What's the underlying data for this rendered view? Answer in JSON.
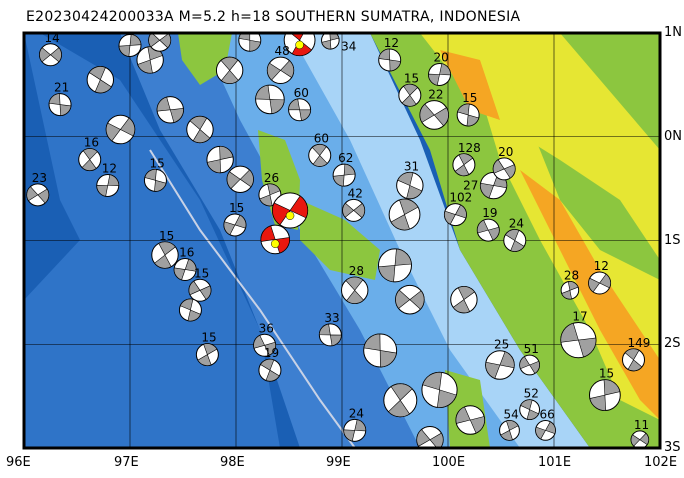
{
  "title": "E20230424200033A M=5.2 h=18 SOUTHERN SUMATRA, INDONESIA",
  "axes": {
    "lon_labels": [
      "96E",
      "97E",
      "98E",
      "99E",
      "100E",
      "101E",
      "102E"
    ],
    "lat_labels": [
      "1N",
      "0N",
      "1S",
      "2S",
      "3S"
    ],
    "lon_range": [
      96,
      102
    ],
    "lat_range": [
      -3,
      1
    ]
  },
  "colors": {
    "deep_ocean": "#1a5fb4",
    "mid_ocean": "#3d7fd0",
    "shelf": "#6aaeea",
    "shallow": "#a8d4f7",
    "lowland": "#8cc63f",
    "upland": "#e6e633",
    "highland": "#f5a623",
    "mechanism_fill": "#a0a0a0",
    "main_event_fill": "#e8170f",
    "epicenter": "#ffff00"
  },
  "mechanisms": [
    {
      "lon": 96.25,
      "lat": 0.79,
      "depth": "14",
      "size": 1,
      "main": false
    },
    {
      "lon": 96.34,
      "lat": 0.31,
      "depth": "21",
      "size": 1,
      "main": false
    },
    {
      "lon": 96.62,
      "lat": -0.22,
      "depth": "16",
      "size": 1,
      "main": false
    },
    {
      "lon": 96.79,
      "lat": -0.47,
      "depth": "12",
      "size": 1,
      "main": false
    },
    {
      "lon": 96.13,
      "lat": -0.56,
      "depth": "23",
      "size": 1,
      "main": false
    },
    {
      "lon": 97.24,
      "lat": -0.42,
      "depth": "15",
      "size": 1,
      "main": false
    },
    {
      "lon": 97.33,
      "lat": -1.14,
      "depth": "15",
      "size": 1.2,
      "main": false
    },
    {
      "lon": 97.52,
      "lat": -1.28,
      "depth": "16",
      "size": 1,
      "main": false
    },
    {
      "lon": 97.66,
      "lat": -1.48,
      "depth": "15",
      "size": 1,
      "main": false
    },
    {
      "lon": 97.57,
      "lat": -1.67,
      "depth": "",
      "size": 1,
      "main": false
    },
    {
      "lon": 97.73,
      "lat": -2.1,
      "depth": "15",
      "size": 1,
      "main": false
    },
    {
      "lon": 97.99,
      "lat": -0.85,
      "depth": "15",
      "size": 1,
      "main": false
    },
    {
      "lon": 98.27,
      "lat": -2.01,
      "depth": "36",
      "size": 1,
      "main": false
    },
    {
      "lon": 98.32,
      "lat": -2.25,
      "depth": "19",
      "size": 1,
      "main": false
    },
    {
      "lon": 98.32,
      "lat": -0.56,
      "depth": "26",
      "size": 1,
      "main": false
    },
    {
      "lon": 98.51,
      "lat": -0.71,
      "depth": "",
      "size": 1.6,
      "main": true
    },
    {
      "lon": 98.37,
      "lat": -0.99,
      "depth": "",
      "size": 1.3,
      "main": true
    },
    {
      "lon": 98.6,
      "lat": 0.93,
      "depth": "",
      "size": 1.4,
      "main": true
    },
    {
      "lon": 98.89,
      "lat": 0.93,
      "depth": "34",
      "size": 0.8,
      "main": false
    },
    {
      "lon": 98.42,
      "lat": 0.64,
      "depth": "48",
      "size": 1.2,
      "main": false
    },
    {
      "lon": 98.6,
      "lat": 0.26,
      "depth": "60",
      "size": 1,
      "main": false
    },
    {
      "lon": 98.79,
      "lat": -0.18,
      "depth": "60",
      "size": 1,
      "main": false
    },
    {
      "lon": 99.02,
      "lat": -0.37,
      "depth": "62",
      "size": 1,
      "main": false
    },
    {
      "lon": 99.11,
      "lat": -0.71,
      "depth": "42",
      "size": 1,
      "main": false
    },
    {
      "lon": 99.45,
      "lat": 0.74,
      "depth": "12",
      "size": 1,
      "main": false
    },
    {
      "lon": 99.64,
      "lat": 0.4,
      "depth": "15",
      "size": 1,
      "main": false
    },
    {
      "lon": 99.92,
      "lat": 0.6,
      "depth": "20",
      "size": 1,
      "main": false
    },
    {
      "lon": 99.87,
      "lat": 0.21,
      "depth": "22",
      "size": 1.3,
      "main": false
    },
    {
      "lon": 100.19,
      "lat": 0.21,
      "depth": "15",
      "size": 1,
      "main": false
    },
    {
      "lon": 100.15,
      "lat": -0.27,
      "depth": "128",
      "size": 1,
      "main": false
    },
    {
      "lon": 100.43,
      "lat": -0.47,
      "depth": "27",
      "size": 1.2,
      "main": false
    },
    {
      "lon": 100.53,
      "lat": -0.31,
      "depth": "20",
      "size": 1,
      "main": false
    },
    {
      "lon": 99.64,
      "lat": -0.47,
      "depth": "31",
      "size": 1.2,
      "main": false
    },
    {
      "lon": 99.59,
      "lat": -0.75,
      "depth": "",
      "size": 1.4,
      "main": false
    },
    {
      "lon": 100.07,
      "lat": -0.75,
      "depth": "102",
      "size": 1,
      "main": false
    },
    {
      "lon": 100.38,
      "lat": -0.9,
      "depth": "19",
      "size": 1,
      "main": false
    },
    {
      "lon": 100.63,
      "lat": -1.0,
      "depth": "24",
      "size": 1,
      "main": false
    },
    {
      "lon": 101.15,
      "lat": -1.48,
      "depth": "28",
      "size": 0.8,
      "main": false
    },
    {
      "lon": 101.43,
      "lat": -1.41,
      "depth": "12",
      "size": 1,
      "main": false
    },
    {
      "lon": 101.23,
      "lat": -1.96,
      "depth": "17",
      "size": 1.6,
      "main": false
    },
    {
      "lon": 101.75,
      "lat": -2.15,
      "depth": "149",
      "size": 1,
      "main": false
    },
    {
      "lon": 101.48,
      "lat": -2.49,
      "depth": "15",
      "size": 1.4,
      "main": false
    },
    {
      "lon": 101.81,
      "lat": -2.92,
      "depth": "11",
      "size": 0.8,
      "main": false
    },
    {
      "lon": 98.89,
      "lat": -1.91,
      "depth": "33",
      "size": 1,
      "main": false
    },
    {
      "lon": 99.12,
      "lat": -1.48,
      "depth": "28",
      "size": 1.2,
      "main": false
    },
    {
      "lon": 99.5,
      "lat": -1.24,
      "depth": "",
      "size": 1.5,
      "main": false
    },
    {
      "lon": 99.64,
      "lat": -1.57,
      "depth": "",
      "size": 1.3,
      "main": false
    },
    {
      "lon": 99.36,
      "lat": -2.06,
      "depth": "",
      "size": 1.5,
      "main": false
    },
    {
      "lon": 99.55,
      "lat": -2.54,
      "depth": "",
      "size": 1.5,
      "main": false
    },
    {
      "lon": 99.12,
      "lat": -2.83,
      "depth": "24",
      "size": 1,
      "main": false
    },
    {
      "lon": 99.83,
      "lat": -2.92,
      "depth": "",
      "size": 1.2,
      "main": false
    },
    {
      "lon": 99.92,
      "lat": -2.44,
      "depth": "",
      "size": 1.6,
      "main": false
    },
    {
      "lon": 100.15,
      "lat": -1.57,
      "depth": "",
      "size": 1.2,
      "main": false
    },
    {
      "lon": 100.49,
      "lat": -2.2,
      "depth": "25",
      "size": 1.3,
      "main": false
    },
    {
      "lon": 100.77,
      "lat": -2.2,
      "depth": "51",
      "size": 0.9,
      "main": false
    },
    {
      "lon": 100.77,
      "lat": -2.63,
      "depth": "52",
      "size": 0.9,
      "main": false
    },
    {
      "lon": 100.58,
      "lat": -2.83,
      "depth": "54",
      "size": 0.9,
      "main": false
    },
    {
      "lon": 100.92,
      "lat": -2.83,
      "depth": "66",
      "size": 0.9,
      "main": false
    },
    {
      "lon": 100.21,
      "lat": -2.73,
      "depth": "",
      "size": 1.3,
      "main": false
    },
    {
      "lon": 96.72,
      "lat": 0.55,
      "depth": "",
      "size": 1.2,
      "main": false
    },
    {
      "lon": 97.19,
      "lat": 0.74,
      "depth": "",
      "size": 1.2,
      "main": false
    },
    {
      "lon": 96.91,
      "lat": 0.07,
      "depth": "",
      "size": 1.3,
      "main": false
    },
    {
      "lon": 97.38,
      "lat": 0.26,
      "depth": "",
      "size": 1.2,
      "main": false
    },
    {
      "lon": 97.66,
      "lat": 0.07,
      "depth": "",
      "size": 1.2,
      "main": false
    },
    {
      "lon": 97.85,
      "lat": -0.22,
      "depth": "",
      "size": 1.2,
      "main": false
    },
    {
      "lon": 98.04,
      "lat": -0.41,
      "depth": "",
      "size": 1.2,
      "main": false
    },
    {
      "lon": 98.32,
      "lat": 0.36,
      "depth": "",
      "size": 1.3,
      "main": false
    },
    {
      "lon": 97.94,
      "lat": 0.64,
      "depth": "",
      "size": 1.2,
      "main": false
    },
    {
      "lon": 97.0,
      "lat": 0.88,
      "depth": "",
      "size": 1,
      "main": false
    },
    {
      "lon": 97.28,
      "lat": 0.93,
      "depth": "",
      "size": 1,
      "main": false
    },
    {
      "lon": 98.13,
      "lat": 0.93,
      "depth": "",
      "size": 1,
      "main": false
    }
  ]
}
